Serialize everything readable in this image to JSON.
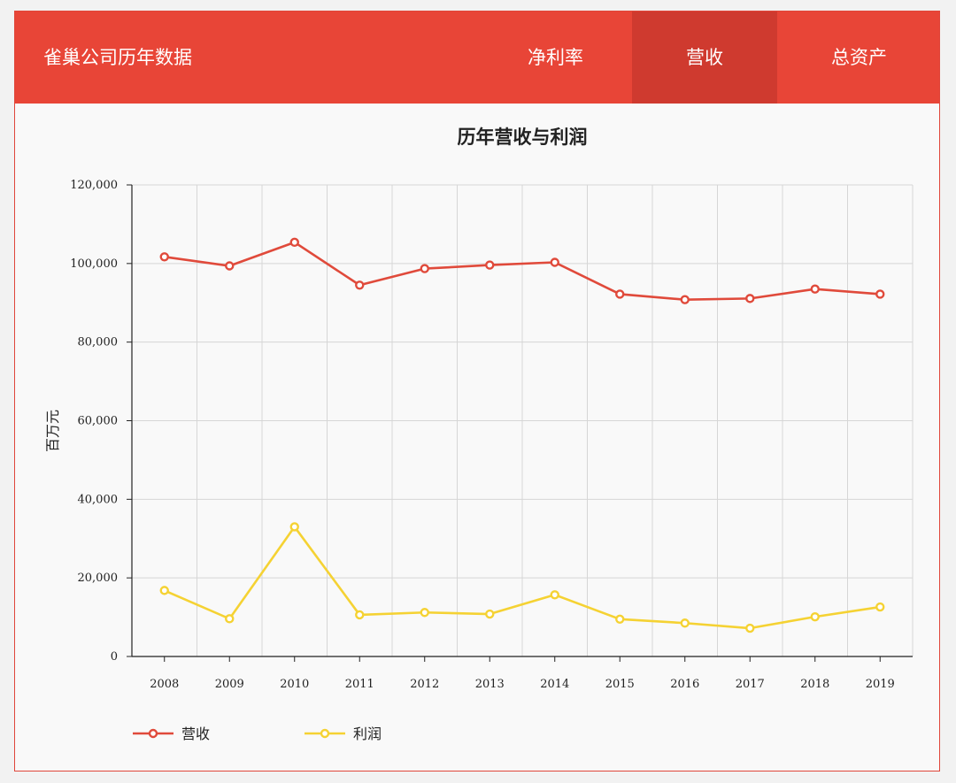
{
  "navbar": {
    "brand": "雀巢公司历年数据",
    "tabs": [
      {
        "label": "净利率",
        "active": false
      },
      {
        "label": "营收",
        "active": true
      },
      {
        "label": "总资产",
        "active": false
      }
    ]
  },
  "colors": {
    "nav_bg": "#e84537",
    "nav_active": "#cf3a2f",
    "revenue": "#e04a3b",
    "profit": "#f5d233"
  },
  "chart_data": {
    "type": "line",
    "title": "历年营收与利润",
    "ylabel": "百万元",
    "xlabel": "",
    "ylim": [
      0,
      120000
    ],
    "yticks": [
      "0",
      "20,000",
      "40,000",
      "60,000",
      "80,000",
      "100,000",
      "120,000"
    ],
    "categories": [
      "2008",
      "2009",
      "2010",
      "2011",
      "2012",
      "2013",
      "2014",
      "2015",
      "2016",
      "2017",
      "2018",
      "2019"
    ],
    "series": [
      {
        "name": "营收",
        "color": "#e04a3b",
        "values": [
          101700,
          99400,
          105400,
          94500,
          98700,
          99600,
          100300,
          92200,
          90800,
          91100,
          93500,
          92200
        ]
      },
      {
        "name": "利润",
        "color": "#f5d233",
        "values": [
          16800,
          9600,
          33000,
          10600,
          11200,
          10800,
          15700,
          9500,
          8500,
          7200,
          10100,
          12600
        ]
      }
    ],
    "grid": true,
    "legend_position": "bottom-left"
  }
}
